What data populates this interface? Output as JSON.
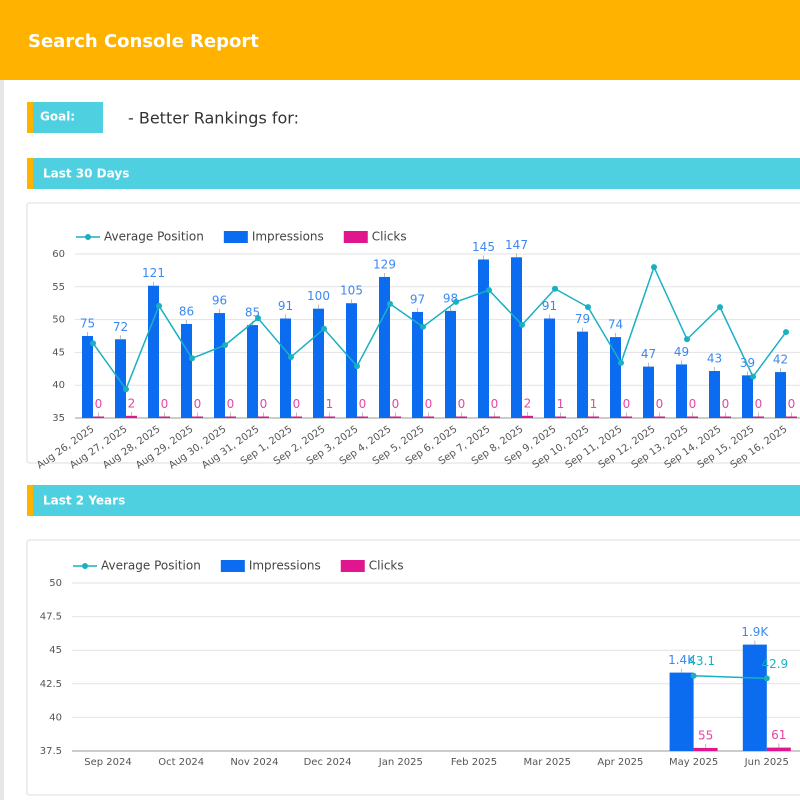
{
  "header": {
    "title": "Search Console Report"
  },
  "goal": {
    "label": "Goal:",
    "text": "- Better Rankings for:"
  },
  "chart_data": [
    {
      "type": "combo",
      "title": "Last 30 Days",
      "categories": [
        "Aug 26, 2025",
        "Aug 27, 2025",
        "Aug 28, 2025",
        "Aug 29, 2025",
        "Aug 30, 2025",
        "Aug 31, 2025",
        "Sep 1, 2025",
        "Sep 2, 2025",
        "Sep 3, 2025",
        "Sep 4, 2025",
        "Sep 5, 2025",
        "Sep 6, 2025",
        "Sep 7, 2025",
        "Sep 8, 2025",
        "Sep 9, 2025",
        "Sep 10, 2025",
        "Sep 11, 2025",
        "Sep 12, 2025",
        "Sep 13, 2025",
        "Sep 14, 2025",
        "Sep 15, 2025",
        "Sep 16, 2025"
      ],
      "series": [
        {
          "name": "Average Position",
          "type": "line",
          "color": "#19b0c2",
          "data_labels": false,
          "values": [
            46.4,
            39.4,
            52.1,
            44.1,
            46.1,
            50.2,
            44.3,
            48.6,
            42.9,
            52.4,
            48.9,
            52.7,
            54.5,
            49.2,
            54.7,
            51.9,
            43.4,
            58.0,
            47.0,
            51.9,
            41.3,
            48.1
          ]
        },
        {
          "name": "Impressions",
          "type": "bar",
          "color": "#0b6cf0",
          "axis": "y2",
          "data_labels": true,
          "values": [
            75,
            72,
            121,
            86,
            96,
            85,
            91,
            100,
            105,
            129,
            97,
            98,
            145,
            147,
            91,
            79,
            74,
            47,
            49,
            43,
            39,
            42
          ]
        },
        {
          "name": "Clicks",
          "type": "bar",
          "color": "#e0168f",
          "axis": "y2",
          "data_labels": true,
          "values": [
            0,
            2,
            0,
            0,
            0,
            0,
            0,
            1,
            0,
            0,
            0,
            0,
            0,
            2,
            1,
            1,
            0,
            0,
            0,
            0,
            0,
            0
          ]
        }
      ],
      "ylim": [
        35,
        60
      ],
      "yticks": [
        35,
        40,
        45,
        50,
        55,
        60
      ],
      "y2lim": [
        0,
        150
      ],
      "grid": true,
      "legend": "top-left"
    },
    {
      "type": "combo",
      "title": "Last 2 Years",
      "categories": [
        "Sep 2024",
        "Oct 2024",
        "Nov 2024",
        "Dec 2024",
        "Jan 2025",
        "Feb 2025",
        "Mar 2025",
        "Apr 2025",
        "May 2025",
        "Jun 2025"
      ],
      "series": [
        {
          "name": "Average Position",
          "type": "line",
          "color": "#19b0c2",
          "data_labels": true,
          "values": [
            null,
            null,
            null,
            null,
            null,
            null,
            null,
            null,
            43.1,
            42.9
          ]
        },
        {
          "name": "Impressions",
          "type": "bar",
          "color": "#0b6cf0",
          "axis": "y2",
          "data_labels": true,
          "values": [
            null,
            null,
            null,
            null,
            null,
            null,
            null,
            null,
            1400,
            1900
          ],
          "value_labels": [
            null,
            null,
            null,
            null,
            null,
            null,
            null,
            null,
            "1.4K",
            "1.9K"
          ]
        },
        {
          "name": "Clicks",
          "type": "bar",
          "color": "#e0168f",
          "axis": "y2",
          "data_labels": true,
          "values": [
            null,
            null,
            null,
            null,
            null,
            null,
            null,
            null,
            55,
            61
          ]
        }
      ],
      "ylim": [
        37.5,
        50
      ],
      "yticks": [
        37.5,
        40,
        42.5,
        45,
        47.5,
        50
      ],
      "y2lim": [
        0,
        3000
      ],
      "grid": true,
      "legend": "top-left"
    }
  ]
}
